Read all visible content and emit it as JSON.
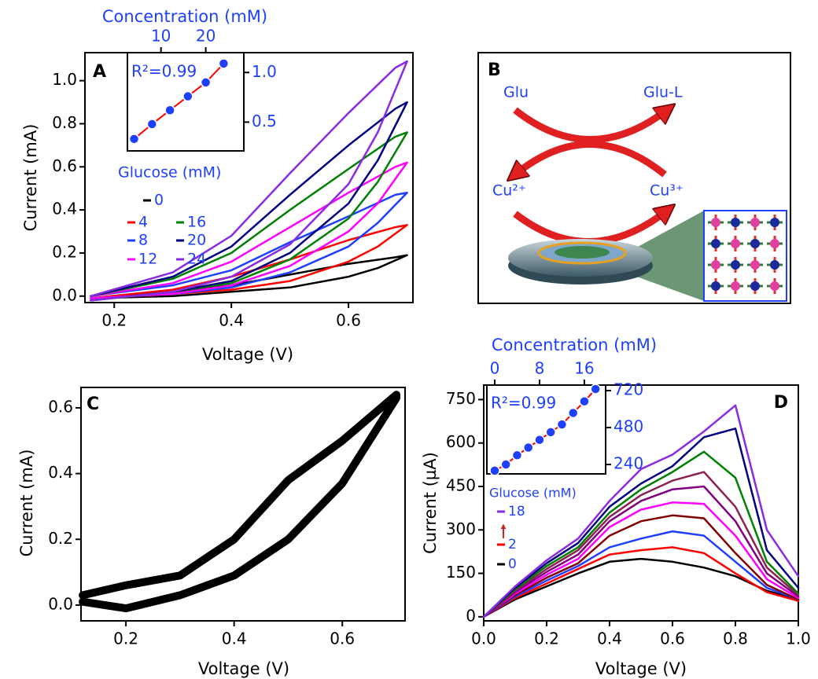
{
  "chart_data": [
    {
      "type": "line",
      "label": "A",
      "xlabel": "Voltage (V)",
      "ylabel": "Current (mA)",
      "xlim": [
        0.15,
        0.71
      ],
      "ylim": [
        -0.03,
        1.13
      ],
      "xticks": [
        0.2,
        0.4,
        0.6
      ],
      "yticks": [
        {
          "value": 0,
          "label": "0.0"
        },
        0.2,
        0.4,
        0.6,
        0.8,
        {
          "value": 1,
          "label": "1.0"
        }
      ],
      "legend_title": "Glucose (mM)",
      "x": [
        0.16,
        0.3,
        0.4,
        0.5,
        0.6,
        0.65,
        0.7,
        0.68,
        0.6,
        0.5,
        0.4,
        0.3,
        0.16
      ],
      "series": [
        {
          "name": "0",
          "color": "#000000",
          "values": [
            -0.01,
            0,
            0.02,
            0.04,
            0.09,
            0.13,
            0.19,
            0.18,
            0.15,
            0.1,
            0.05,
            0.02,
            -0.01
          ]
        },
        {
          "name": "4",
          "color": "#ff0000",
          "values": [
            -0.01,
            0.01,
            0.03,
            0.07,
            0.16,
            0.23,
            0.33,
            0.32,
            0.26,
            0.17,
            0.09,
            0.03,
            -0.01
          ]
        },
        {
          "name": "8",
          "color": "#1f3fff",
          "values": [
            -0.01,
            0.01,
            0.04,
            0.11,
            0.23,
            0.34,
            0.48,
            0.47,
            0.37,
            0.25,
            0.12,
            0.05,
            0
          ]
        },
        {
          "name": "12",
          "color": "#ff00ff",
          "values": [
            -0.01,
            0.01,
            0.05,
            0.14,
            0.3,
            0.43,
            0.62,
            0.6,
            0.48,
            0.32,
            0.16,
            0.06,
            0
          ]
        },
        {
          "name": "16",
          "color": "#008000",
          "values": [
            -0.02,
            0.02,
            0.06,
            0.17,
            0.36,
            0.53,
            0.76,
            0.74,
            0.59,
            0.4,
            0.2,
            0.08,
            0
          ]
        },
        {
          "name": "20",
          "color": "#000080",
          "values": [
            -0.02,
            0.02,
            0.07,
            0.2,
            0.43,
            0.63,
            0.9,
            0.87,
            0.7,
            0.47,
            0.23,
            0.09,
            0
          ]
        },
        {
          "name": "24",
          "color": "#8a2be2",
          "values": [
            -0.02,
            0.02,
            0.09,
            0.24,
            0.52,
            0.76,
            1.09,
            1.06,
            0.85,
            0.57,
            0.28,
            0.11,
            0
          ]
        }
      ]
    },
    {
      "type": "scatter",
      "xlabel": "Concentration (mM)",
      "annotation": "R²=0.99",
      "xaxis": "top",
      "yaxis": "right",
      "axis_color": "#1f3fff",
      "line_color": "#ff0000",
      "xlim": [
        2.5,
        28.5
      ],
      "ylim": [
        0.21,
        1.2
      ],
      "xticks": [
        10,
        20
      ],
      "yticks": [
        0.5,
        {
          "value": 1,
          "label": "1.0"
        }
      ],
      "x": [
        4,
        8,
        12,
        16,
        20,
        24
      ],
      "values": [
        0.33,
        0.48,
        0.62,
        0.76,
        0.9,
        1.09
      ],
      "color": "#1f3fff"
    },
    {
      "type": "line",
      "label": "C",
      "xlabel": "Voltage (V)",
      "ylabel": "Current (mA)",
      "xlim": [
        0.117,
        0.716
      ],
      "ylim": [
        -0.048,
        0.662
      ],
      "xticks": [
        0.2,
        0.4,
        0.6
      ],
      "yticks": [
        {
          "value": 0,
          "label": "0.0"
        },
        0.2,
        0.4,
        0.6
      ],
      "x": [
        0.12,
        0.2,
        0.3,
        0.4,
        0.5,
        0.6,
        0.7,
        0.7,
        0.6,
        0.5,
        0.4,
        0.3,
        0.2,
        0.12
      ],
      "series": [
        {
          "color": "#000000",
          "values": [
            0.01,
            -0.01,
            0.03,
            0.09,
            0.2,
            0.37,
            0.63,
            0.64,
            0.5,
            0.38,
            0.2,
            0.09,
            0.06,
            0.03
          ]
        }
      ]
    },
    {
      "type": "line",
      "label": "D",
      "xlabel": "Voltage (V)",
      "ylabel": "Current (µA)",
      "xlim": [
        0,
        1
      ],
      "ylim": [
        -14,
        800
      ],
      "xticks": [
        {
          "value": 0,
          "label": "0.0"
        },
        0.2,
        0.4,
        0.6,
        0.8,
        {
          "value": 1,
          "label": "1.0"
        }
      ],
      "yticks": [
        0,
        150,
        300,
        450,
        600,
        750
      ],
      "legend_title": "Glucose (mM)",
      "x": [
        0,
        0.1,
        0.2,
        0.3,
        0.4,
        0.5,
        0.6,
        0.7,
        0.8,
        0.9,
        1.0
      ],
      "series": [
        {
          "name": "0",
          "color": "#000000",
          "values": [
            0,
            60,
            105,
            150,
            190,
            200,
            190,
            170,
            140,
            90,
            60
          ]
        },
        {
          "name": "2",
          "color": "#ff0000",
          "values": [
            0,
            65,
            115,
            165,
            215,
            230,
            240,
            220,
            150,
            85,
            55
          ]
        },
        {
          "color": "#1f3fff",
          "values": [
            0,
            70,
            125,
            175,
            240,
            270,
            295,
            280,
            190,
            100,
            60
          ]
        },
        {
          "color": "#800000",
          "values": [
            0,
            75,
            135,
            185,
            280,
            330,
            350,
            340,
            220,
            110,
            60
          ]
        },
        {
          "color": "#ff00ff",
          "values": [
            0,
            80,
            145,
            200,
            310,
            370,
            395,
            390,
            280,
            130,
            65
          ]
        },
        {
          "color": "#800080",
          "values": [
            0,
            85,
            155,
            215,
            330,
            400,
            440,
            450,
            330,
            150,
            70
          ]
        },
        {
          "color": "#8b2252",
          "values": [
            0,
            90,
            165,
            230,
            345,
            420,
            470,
            500,
            380,
            170,
            75
          ]
        },
        {
          "color": "#008000",
          "values": [
            0,
            95,
            175,
            240,
            360,
            440,
            500,
            570,
            480,
            190,
            80
          ]
        },
        {
          "color": "#000080",
          "values": [
            0,
            100,
            185,
            255,
            380,
            460,
            520,
            620,
            650,
            230,
            100
          ]
        },
        {
          "name": "18",
          "color": "#8a2be2",
          "values": [
            0,
            105,
            195,
            270,
            400,
            510,
            560,
            640,
            730,
            300,
            140
          ]
        }
      ]
    },
    {
      "type": "scatter",
      "xlabel": "Concentration (mM)",
      "annotation": "R²=0.99",
      "xaxis": "top",
      "yaxis": "right",
      "axis_color": "#1f3fff",
      "line_color": "#ff0000",
      "xlim": [
        -1.4,
        19.8
      ],
      "ylim": [
        179,
        756
      ],
      "xticks": [
        0,
        8,
        16
      ],
      "yticks": [
        240,
        480,
        720
      ],
      "x": [
        0,
        2,
        4,
        6,
        8,
        10,
        12,
        14,
        16,
        18
      ],
      "values": [
        200,
        240,
        300,
        350,
        400,
        450,
        500,
        575,
        650,
        730
      ],
      "color": "#1f3fff"
    }
  ],
  "diagram": {
    "label": "B",
    "labels": [
      "Glu",
      "Glu-L",
      "Cu²⁺",
      "Cu³⁺"
    ]
  }
}
